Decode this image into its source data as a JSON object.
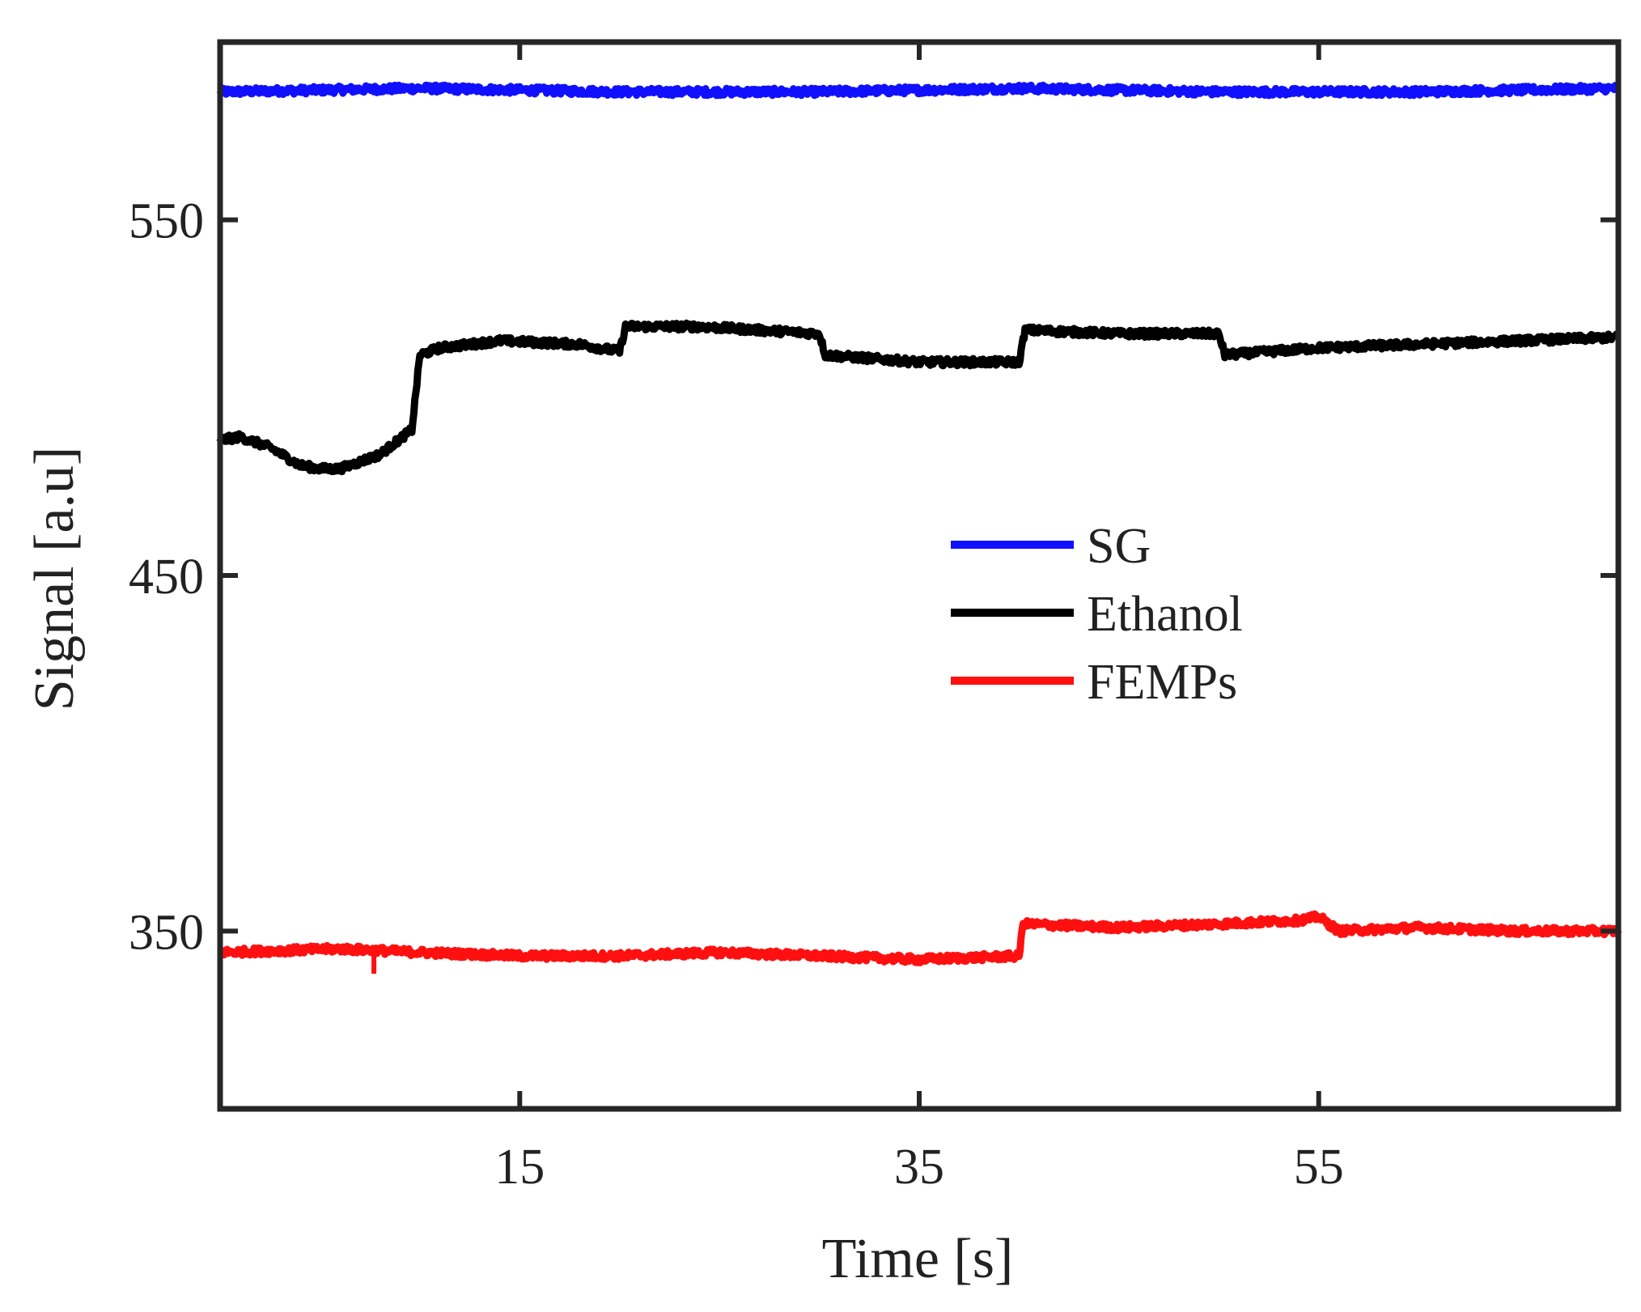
{
  "chart_data": {
    "type": "line",
    "title": "",
    "xlabel": "Time [s]",
    "ylabel": "Signal [a.u]",
    "xlim": [
      0,
      70
    ],
    "ylim": [
      300,
      600
    ],
    "xticks": [
      15,
      35,
      55
    ],
    "yticks": [
      350,
      450,
      550
    ],
    "grid": false,
    "legend_position": "center-right",
    "series": [
      {
        "name": "SG",
        "color": "#1010ff",
        "x": [
          0,
          10,
          20,
          30,
          40,
          50,
          60,
          70
        ],
        "y": [
          586,
          587,
          586,
          586,
          587,
          586,
          586,
          587
        ],
        "noise": 1.0
      },
      {
        "name": "Ethanol",
        "color": "#000000",
        "x": [
          0,
          1,
          2.5,
          4,
          5,
          6,
          8,
          9.6,
          10,
          11,
          14,
          18,
          20,
          20.3,
          24,
          30,
          30.3,
          35,
          40,
          40.3,
          45,
          50,
          50.3,
          55,
          60,
          65,
          70
        ],
        "y": [
          488,
          489,
          486,
          481,
          480,
          480,
          484,
          491,
          512,
          514,
          516,
          515,
          513,
          520,
          520,
          518,
          512,
          510,
          510,
          519,
          518,
          518,
          512,
          514,
          515,
          516,
          517
        ],
        "noise": 1.0
      },
      {
        "name": "FEMPs",
        "color": "#ff1010",
        "x": [
          0,
          6,
          10,
          15,
          20,
          25,
          30,
          35,
          40,
          40.2,
          45,
          50,
          54,
          55,
          56,
          60,
          65,
          70
        ],
        "y": [
          344,
          345,
          344,
          343,
          343,
          344,
          343,
          342,
          343,
          352,
          351,
          352,
          353,
          354,
          350,
          351,
          350,
          350
        ],
        "noise": 1.0
      }
    ]
  }
}
